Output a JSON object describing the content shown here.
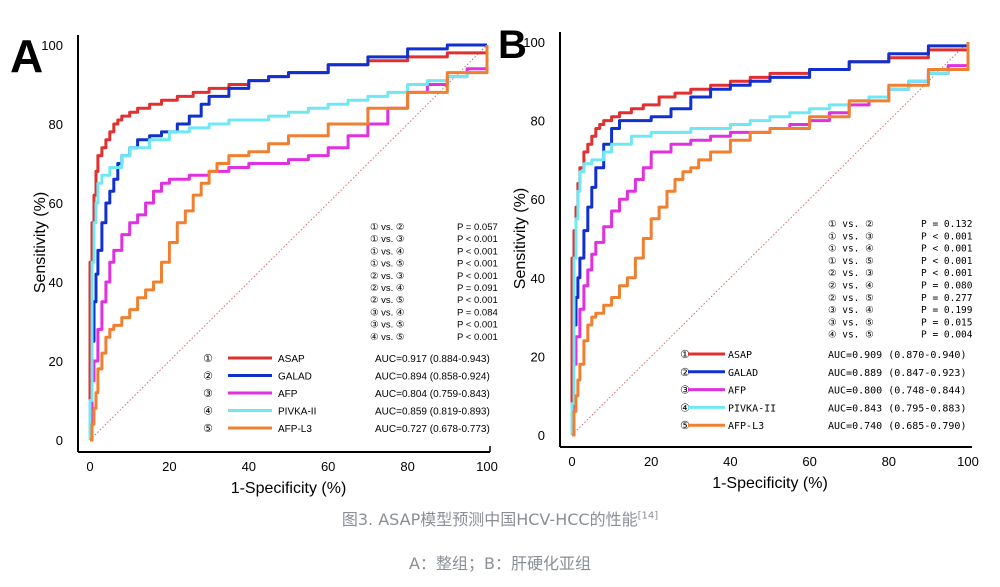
{
  "chart_data": [
    {
      "type": "line",
      "panel_label": "A",
      "xlabel": "1-Specificity (%)",
      "ylabel": "Sensitivity (%)",
      "xlim": [
        0,
        100
      ],
      "ylim": [
        0,
        100
      ],
      "xticks": [
        "0",
        "20",
        "40",
        "60",
        "80",
        "100"
      ],
      "yticks": [
        "0",
        "20",
        "40",
        "60",
        "80",
        "100"
      ],
      "reference_line": "diagonal",
      "series": [
        {
          "key": "1",
          "name": "ASAP",
          "color": "#e03030",
          "auc": "AUC=0.917 (0.884-0.943)",
          "x": [
            0,
            0,
            0.5,
            1,
            1.5,
            2,
            3,
            4,
            5,
            6,
            7,
            8,
            10,
            12,
            15,
            18,
            22,
            26,
            30,
            35,
            40,
            45,
            50,
            60,
            70,
            80,
            90,
            100
          ],
          "y": [
            0,
            45,
            55,
            62,
            68,
            72,
            74,
            76,
            78,
            80,
            81,
            82,
            83,
            84,
            85,
            86,
            87,
            88,
            89,
            90,
            91,
            92,
            93,
            95,
            96,
            97,
            98,
            100
          ]
        },
        {
          "key": "2",
          "name": "GALAD",
          "color": "#1030d0",
          "auc": "AUC=0.894 (0.858-0.924)",
          "x": [
            0,
            0.5,
            1,
            1.5,
            2,
            3,
            4,
            5,
            6,
            7,
            8,
            10,
            12,
            15,
            18,
            20,
            22,
            25,
            28,
            30,
            35,
            40,
            45,
            50,
            60,
            70,
            80,
            90,
            100
          ],
          "y": [
            0,
            25,
            35,
            42,
            48,
            55,
            60,
            63,
            66,
            70,
            72,
            74,
            76,
            77,
            78,
            78,
            80,
            82,
            85,
            87,
            89,
            91,
            92,
            93,
            95,
            97,
            99,
            100,
            100
          ]
        },
        {
          "key": "3",
          "name": "AFP",
          "color": "#e030e0",
          "auc": "AUC=0.804 (0.759-0.843)",
          "x": [
            0,
            0.5,
            1,
            2,
            3,
            4,
            5,
            6,
            8,
            10,
            12,
            14,
            16,
            18,
            20,
            25,
            30,
            35,
            40,
            45,
            50,
            55,
            60,
            65,
            70,
            75,
            80,
            85,
            90,
            95,
            100
          ],
          "y": [
            0,
            15,
            20,
            28,
            35,
            40,
            45,
            48,
            52,
            55,
            57,
            60,
            63,
            65,
            66,
            67,
            68,
            69,
            70,
            70,
            71,
            72,
            74,
            77,
            80,
            84,
            88,
            90,
            92,
            94,
            100
          ]
        },
        {
          "key": "4",
          "name": "PIVKA-II",
          "color": "#70e8f4",
          "auc": "AUC=0.859 (0.819-0.893)",
          "x": [
            0,
            0,
            0.5,
            1,
            1.5,
            2,
            3,
            5,
            8,
            10,
            15,
            20,
            25,
            30,
            35,
            40,
            45,
            50,
            55,
            60,
            65,
            70,
            75,
            80,
            85,
            90,
            95,
            100
          ],
          "y": [
            0,
            10,
            45,
            55,
            60,
            65,
            67,
            69,
            72,
            74,
            76,
            78,
            79,
            80,
            81,
            81,
            82,
            83,
            84,
            85,
            86,
            87,
            88,
            90,
            91,
            92,
            93,
            100
          ]
        },
        {
          "key": "5",
          "name": "AFP-L3",
          "color": "#f08030",
          "auc": "AUC=0.727 (0.678-0.773)",
          "x": [
            0,
            0.5,
            1,
            1.5,
            2,
            3,
            4,
            5,
            6,
            8,
            10,
            12,
            14,
            16,
            18,
            20,
            22,
            24,
            26,
            28,
            30,
            32,
            35,
            40,
            45,
            50,
            60,
            70,
            80,
            90,
            100
          ],
          "y": [
            0,
            4,
            8,
            12,
            18,
            22,
            26,
            28,
            29,
            31,
            33,
            36,
            38,
            40,
            45,
            50,
            55,
            58,
            62,
            65,
            68,
            70,
            72,
            73,
            75,
            77,
            80,
            84,
            88,
            93,
            100
          ]
        }
      ],
      "pvalues": [
        {
          "cmp": "① vs. ②",
          "p": "P = 0.057"
        },
        {
          "cmp": "① vs. ③",
          "p": "P < 0.001"
        },
        {
          "cmp": "① vs. ④",
          "p": "P < 0.001"
        },
        {
          "cmp": "① vs. ⑤",
          "p": "P < 0.001"
        },
        {
          "cmp": "② vs. ③",
          "p": "P < 0.001"
        },
        {
          "cmp": "② vs. ④",
          "p": "P = 0.091"
        },
        {
          "cmp": "② vs. ⑤",
          "p": "P < 0.001"
        },
        {
          "cmp": "③ vs. ④",
          "p": "P = 0.084"
        },
        {
          "cmp": "③ vs. ⑤",
          "p": "P < 0.001"
        },
        {
          "cmp": "④ vs. ⑤",
          "p": "P < 0.001"
        }
      ]
    },
    {
      "type": "line",
      "panel_label": "B",
      "xlabel": "1-Specificity (%)",
      "ylabel": "Sensitivity (%)",
      "xlim": [
        0,
        100
      ],
      "ylim": [
        0,
        100
      ],
      "xticks": [
        "0",
        "20",
        "40",
        "60",
        "80",
        "100"
      ],
      "yticks": [
        "0",
        "20",
        "40",
        "60",
        "80",
        "100"
      ],
      "reference_line": "diagonal",
      "series": [
        {
          "key": "1",
          "name": "ASAP",
          "color": "#e03030",
          "auc": "AUC=0.909  (0.870-0.940)",
          "x": [
            0,
            0,
            0.5,
            1,
            1.5,
            2,
            3,
            4,
            5,
            6,
            7,
            8,
            10,
            12,
            15,
            18,
            22,
            26,
            30,
            35,
            40,
            45,
            50,
            60,
            70,
            80,
            90,
            100
          ],
          "y": [
            0,
            45,
            52,
            58,
            64,
            68,
            72,
            74,
            76,
            78,
            79,
            80,
            81,
            82,
            83,
            84,
            86,
            87,
            88,
            89,
            90,
            91,
            92,
            93,
            95,
            96,
            98,
            100
          ]
        },
        {
          "key": "2",
          "name": "GALAD",
          "color": "#1030d0",
          "auc": "AUC=0.889  (0.847-0.923)",
          "x": [
            0,
            0.5,
            1,
            1.5,
            2,
            3,
            4,
            5,
            6,
            8,
            10,
            12,
            15,
            20,
            25,
            30,
            35,
            40,
            45,
            50,
            60,
            70,
            80,
            90,
            100
          ],
          "y": [
            0,
            28,
            35,
            40,
            45,
            52,
            58,
            63,
            68,
            74,
            78,
            80,
            80,
            81,
            83,
            86,
            88,
            89,
            90,
            91,
            93,
            95,
            97,
            99,
            100
          ]
        },
        {
          "key": "3",
          "name": "AFP",
          "color": "#e030e0",
          "auc": "AUC=0.800  (0.748-0.844)",
          "x": [
            0,
            0.5,
            1,
            2,
            3,
            4,
            5,
            6,
            8,
            10,
            12,
            14,
            16,
            18,
            20,
            25,
            30,
            35,
            40,
            45,
            50,
            55,
            60,
            65,
            70,
            75,
            80,
            85,
            90,
            95,
            100
          ],
          "y": [
            0,
            18,
            25,
            32,
            38,
            42,
            46,
            49,
            53,
            57,
            60,
            62,
            65,
            68,
            72,
            74,
            75,
            76,
            77,
            77,
            78,
            79,
            80,
            82,
            84,
            86,
            88,
            90,
            92,
            94,
            100
          ]
        },
        {
          "key": "4",
          "name": "PIVKA-II",
          "color": "#70e8f4",
          "auc": "AUC=0.843  (0.795-0.883)",
          "x": [
            0,
            0,
            0.5,
            1,
            1.5,
            2,
            3,
            5,
            8,
            10,
            15,
            20,
            25,
            30,
            35,
            40,
            45,
            50,
            55,
            60,
            65,
            70,
            75,
            80,
            85,
            90,
            95,
            100
          ],
          "y": [
            0,
            8,
            45,
            55,
            62,
            67,
            69,
            70,
            72,
            74,
            76,
            77,
            77,
            78,
            78,
            79,
            80,
            81,
            82,
            83,
            84,
            85,
            86,
            88,
            90,
            92,
            93,
            100
          ]
        },
        {
          "key": "5",
          "name": "AFP-L3",
          "color": "#f08030",
          "auc": "AUC=0.740  (0.685-0.790)",
          "x": [
            0,
            0.5,
            1,
            1.5,
            2,
            3,
            4,
            5,
            6,
            8,
            10,
            12,
            14,
            16,
            18,
            20,
            22,
            24,
            26,
            28,
            30,
            32,
            35,
            40,
            45,
            50,
            60,
            70,
            80,
            90,
            100
          ],
          "y": [
            0,
            6,
            10,
            14,
            18,
            24,
            28,
            30,
            31,
            33,
            35,
            38,
            40,
            45,
            50,
            55,
            58,
            62,
            65,
            67,
            68,
            70,
            72,
            75,
            77,
            78,
            81,
            85,
            89,
            93,
            100
          ]
        }
      ],
      "pvalues": [
        {
          "cmp": "① vs. ②",
          "p": "P = 0.132"
        },
        {
          "cmp": "① vs. ③",
          "p": "P < 0.001"
        },
        {
          "cmp": "① vs. ④",
          "p": "P < 0.001"
        },
        {
          "cmp": "① vs. ⑤",
          "p": "P < 0.001"
        },
        {
          "cmp": "② vs. ③",
          "p": "P < 0.001"
        },
        {
          "cmp": "② vs. ④",
          "p": "P = 0.080"
        },
        {
          "cmp": "② vs. ⑤",
          "p": "P = 0.277"
        },
        {
          "cmp": "③ vs. ④",
          "p": "P = 0.199"
        },
        {
          "cmp": "③ vs. ⑤",
          "p": "P = 0.015"
        },
        {
          "cmp": "④ vs. ⑤",
          "p": "P = 0.004"
        }
      ]
    }
  ],
  "caption": {
    "title": "图3. ASAP模型预测中国HCV-HCC的性能",
    "ref": "[14]",
    "subtitle": "A：整组；B：肝硬化亚组"
  },
  "circled_numbers": {
    "1": "①",
    "2": "②",
    "3": "③",
    "4": "④",
    "5": "⑤"
  }
}
